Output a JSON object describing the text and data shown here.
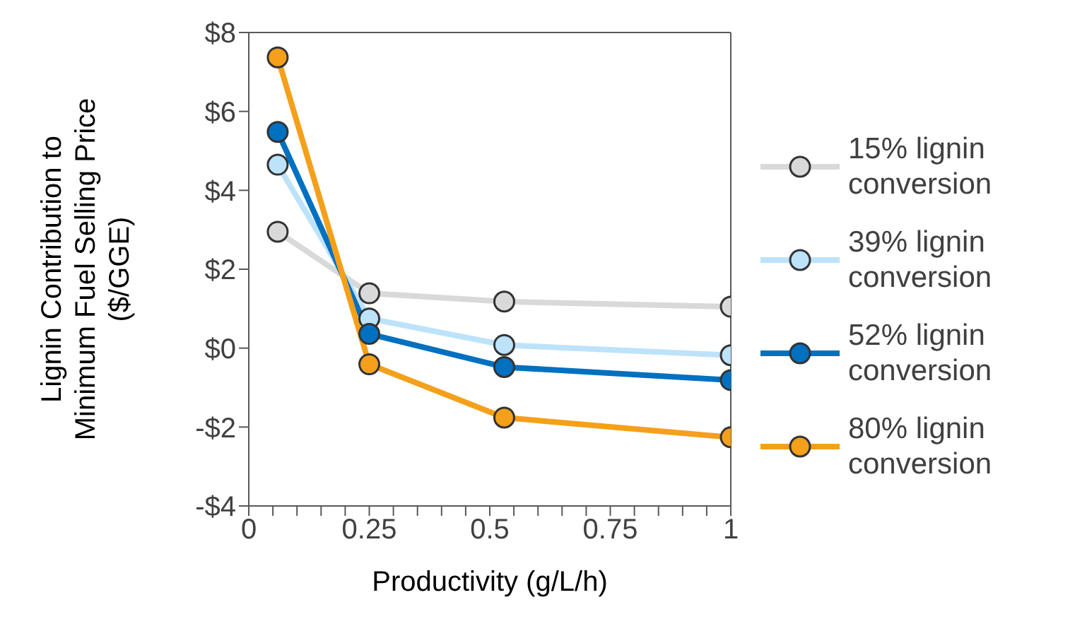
{
  "chart_data": {
    "type": "line",
    "xlabel": "Productivity (g/L/h)",
    "ylabel": "Lignin Contribution to Minimum Fuel Selling Price ($/GGE)",
    "x": [
      0.06,
      0.25,
      0.53,
      1
    ],
    "series": [
      {
        "name": "15% lignin conversion",
        "color": "#d9d9d9",
        "values": [
          2.95,
          1.39,
          1.18,
          1.05
        ]
      },
      {
        "name": "39% lignin conversion",
        "color": "#bde3fb",
        "values": [
          4.65,
          0.75,
          0.08,
          -0.18
        ]
      },
      {
        "name": "52% lignin conversion",
        "color": "#0070c0",
        "values": [
          5.48,
          0.36,
          -0.48,
          -0.81
        ]
      },
      {
        "name": "80% lignin conversion",
        "color": "#f5a01a",
        "values": [
          7.37,
          -0.41,
          -1.76,
          -2.26
        ]
      }
    ],
    "xlim": [
      0,
      1
    ],
    "xticks": [
      0,
      {
        "value": 0.05,
        "label": null
      },
      {
        "value": 0.1,
        "label": null
      },
      {
        "value": 0.15,
        "label": null
      },
      {
        "value": 0.2,
        "label": null
      },
      0.25,
      {
        "value": 0.3,
        "label": null
      },
      {
        "value": 0.35,
        "label": null
      },
      {
        "value": 0.4,
        "label": null
      },
      {
        "value": 0.45,
        "label": null
      },
      0.5,
      {
        "value": 0.55,
        "label": null
      },
      {
        "value": 0.6,
        "label": null
      },
      {
        "value": 0.65,
        "label": null
      },
      {
        "value": 0.7,
        "label": null
      },
      0.75,
      {
        "value": 0.8,
        "label": null
      },
      {
        "value": 0.85,
        "label": null
      },
      {
        "value": 0.9,
        "label": null
      },
      {
        "value": 0.95,
        "label": null
      },
      1
    ],
    "ylim": [
      -4,
      8
    ],
    "yticks": [
      {
        "value": -4,
        "label": "-$4"
      },
      {
        "value": -2,
        "label": "-$2"
      },
      {
        "value": 0,
        "label": "$0"
      },
      {
        "value": 2,
        "label": "$2"
      },
      {
        "value": 4,
        "label": "$4"
      },
      {
        "value": 6,
        "label": "$6"
      },
      {
        "value": 8,
        "label": "$8"
      }
    ],
    "grid": false,
    "legend": "right",
    "marker": "circle",
    "line_style": "solid"
  }
}
